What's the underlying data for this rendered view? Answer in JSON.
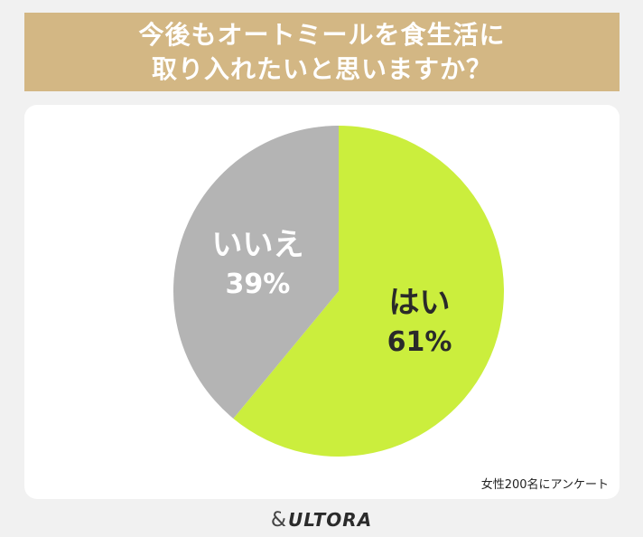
{
  "title": {
    "line1": "今後もオートミールを食生活に",
    "line2": "取り入れたいと思いますか？"
  },
  "chart_data": {
    "type": "pie",
    "categories": [
      "はい",
      "いいえ"
    ],
    "values": [
      61,
      39
    ],
    "value_labels": [
      "61%",
      "39%"
    ],
    "colors": [
      "#cbee3d",
      "#b4b4b4"
    ],
    "label_colors": [
      "#2a2a2a",
      "#ffffff"
    ]
  },
  "source_note": "女性200名にアンケート",
  "brand": {
    "amp": "&",
    "name": "ULTORA"
  }
}
